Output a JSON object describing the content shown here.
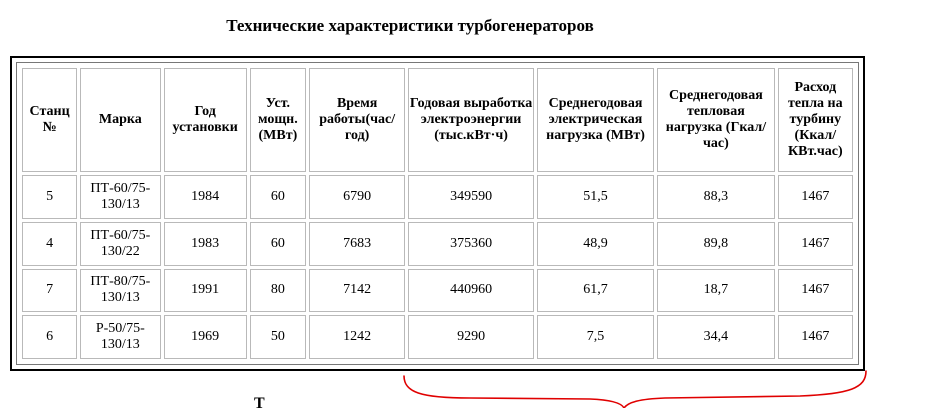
{
  "title": "Технические характеристики турбогенераторов",
  "table": {
    "headers": [
      "Станц №",
      "Марка",
      "Год установки",
      "Уст. мощн. (МВт)",
      "Время работы(час/год)",
      "Годовая выработка электроэнергии (тыс.кВт·ч)",
      "Среднегодовая электрическая нагрузка (МВт)",
      "Среднегодовая тепловая нагрузка (Гкал/час)",
      "Расход тепла на турбину (Ккал/ КВт.час)"
    ],
    "rows": [
      [
        "5",
        "ПТ-60/75-130/13",
        "1984",
        "60",
        "6790",
        "349590",
        "51,5",
        "88,3",
        "1467"
      ],
      [
        "4",
        "ПТ-60/75-130/22",
        "1983",
        "60",
        "7683",
        "375360",
        "48,9",
        "89,8",
        "1467"
      ],
      [
        "7",
        "ПТ-80/75-130/13",
        "1991",
        "80",
        "7142",
        "440960",
        "61,7",
        "18,7",
        "1467"
      ],
      [
        "6",
        "Р-50/75-130/13",
        "1969",
        "50",
        "1242",
        "9290",
        "7,5",
        "34,4",
        "1467"
      ]
    ]
  },
  "footer_partial": "Т",
  "colors": {
    "annotation": "#e00000",
    "border": "#000000",
    "cell_border": "#b9b9b9"
  }
}
